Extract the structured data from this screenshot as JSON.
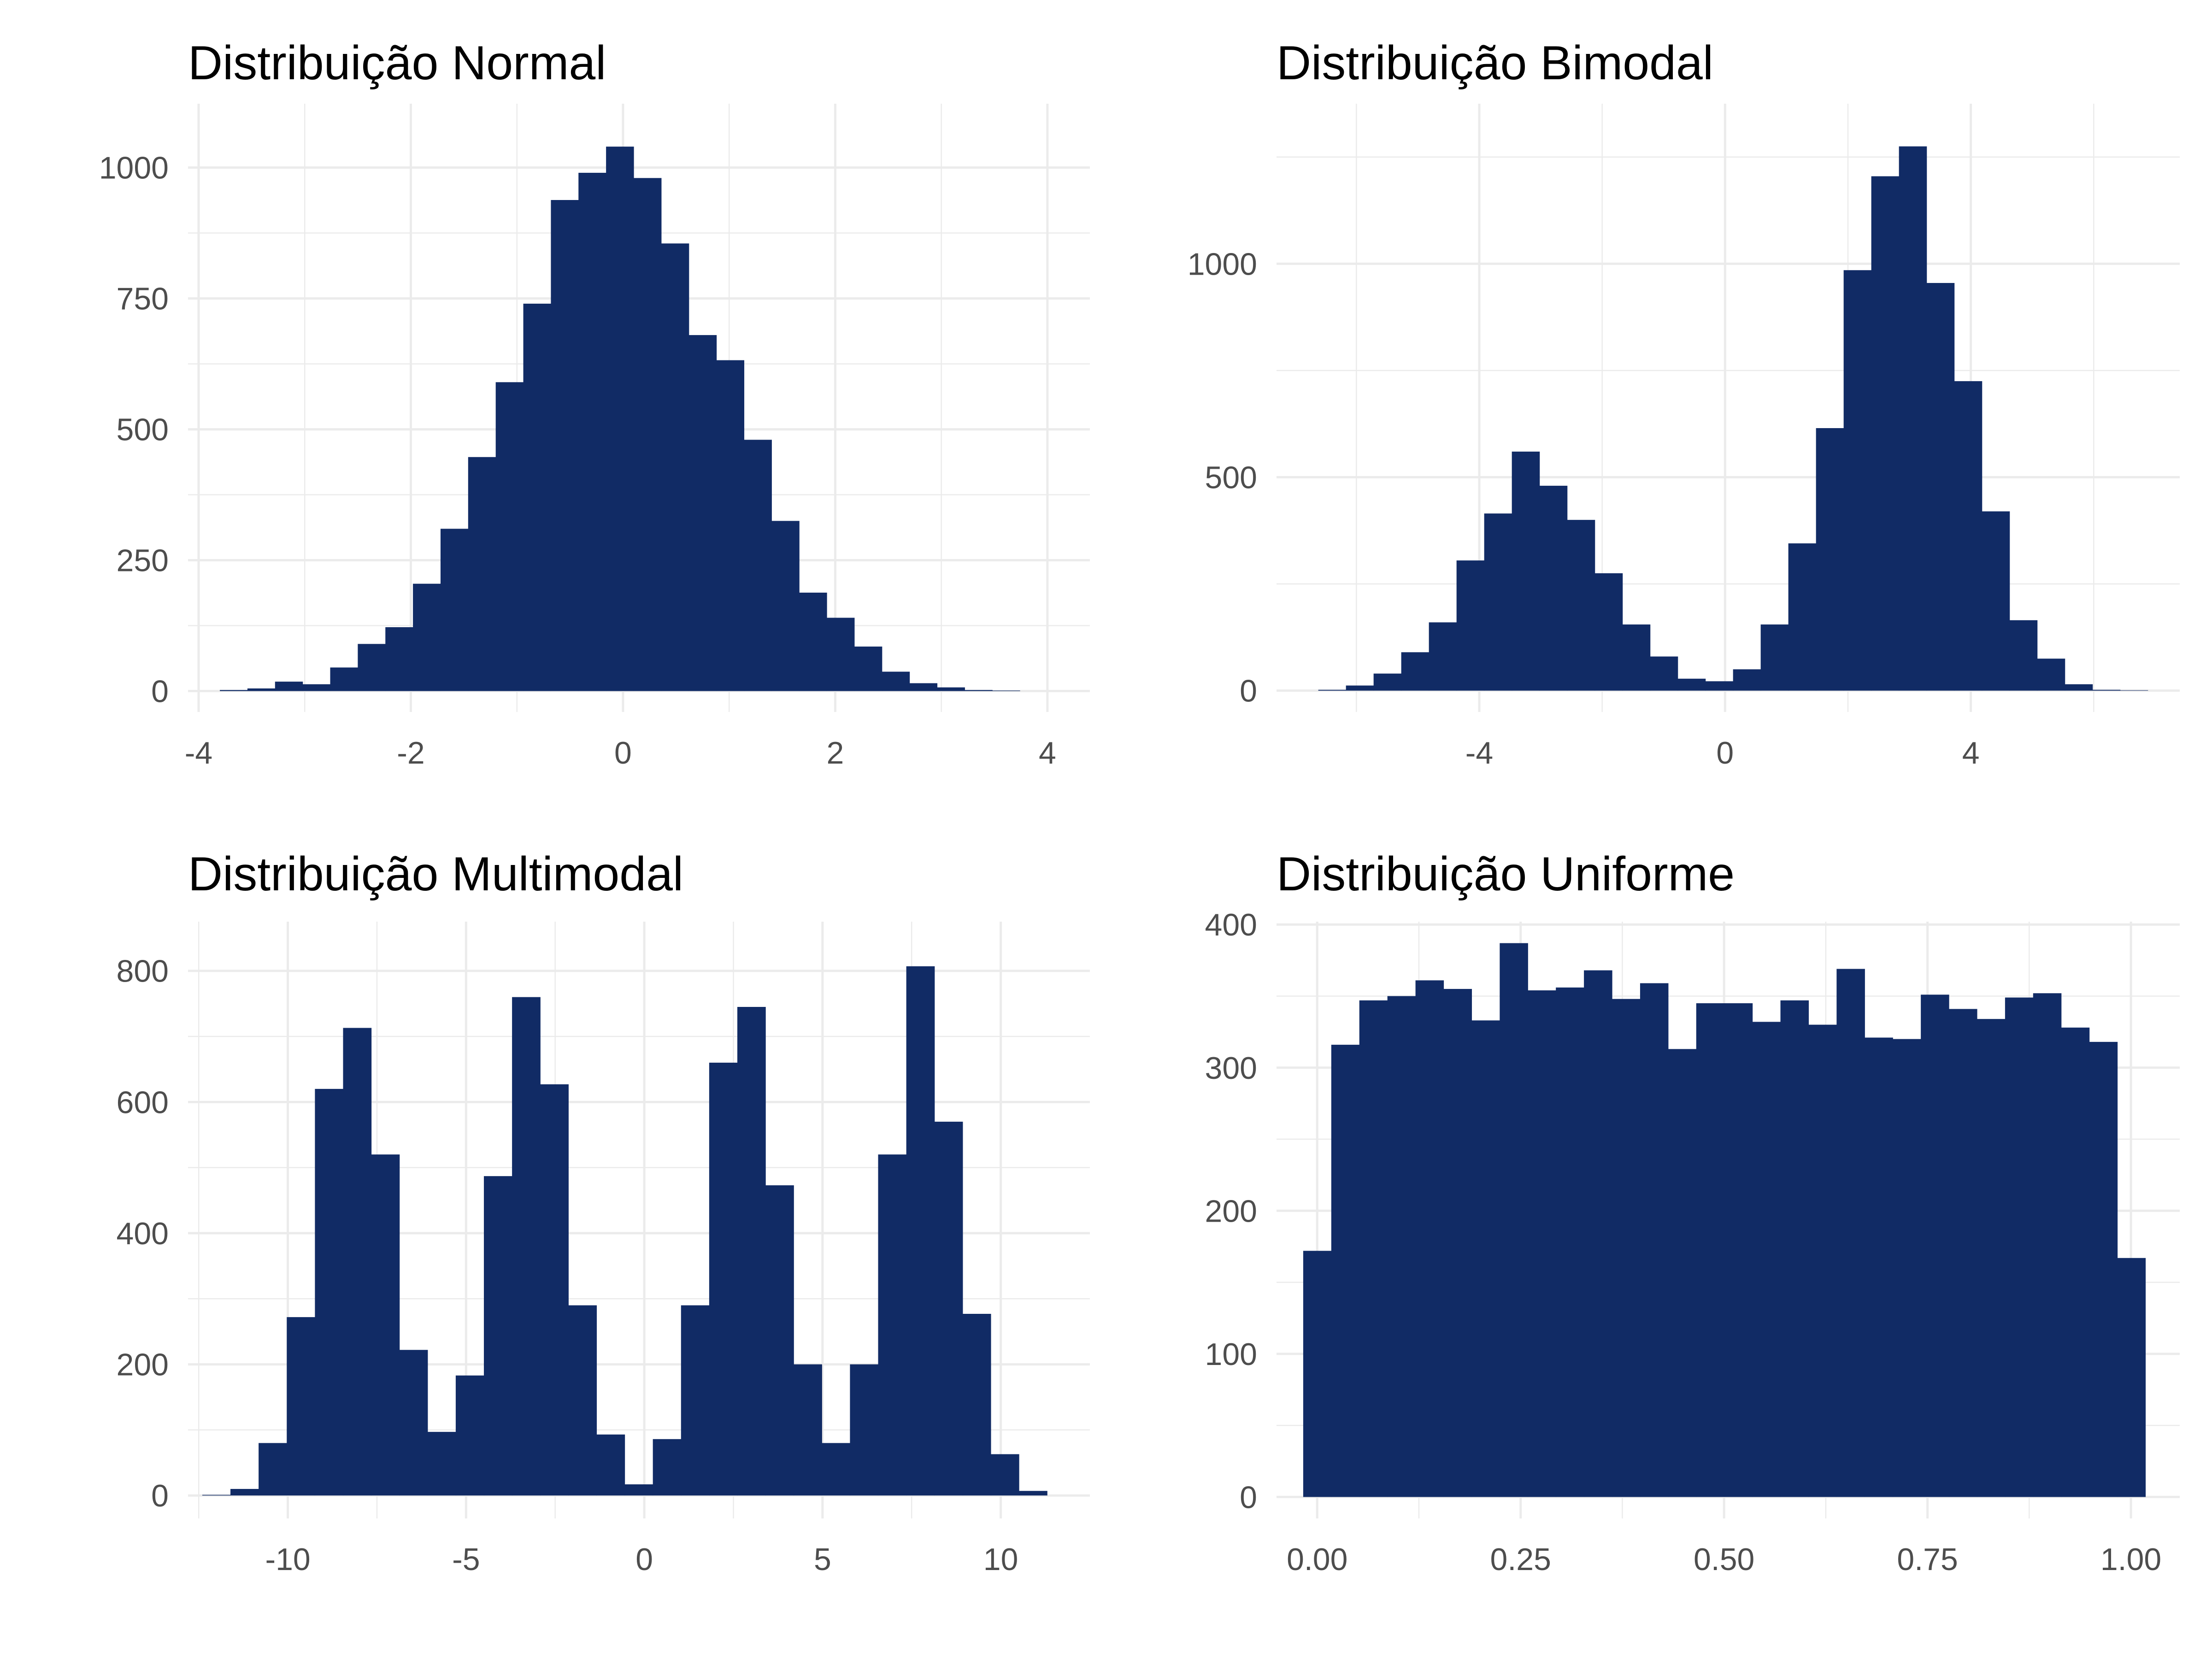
{
  "colors": {
    "bar": "#112b65",
    "grid": "#ebebeb",
    "tick_text": "#4d4d4d",
    "title_text": "#000000"
  },
  "chart_data": [
    {
      "type": "bar",
      "title": "Distribuição Normal",
      "bin_start": -3.8,
      "bin_width": 0.26,
      "counts": [
        2,
        5,
        18,
        13,
        45,
        90,
        122,
        205,
        310,
        447,
        590,
        740,
        938,
        990,
        1040,
        980,
        855,
        680,
        632,
        480,
        325,
        188,
        140,
        85,
        37,
        15,
        7,
        2,
        1,
        0,
        0
      ],
      "xlim": [
        -4.1,
        4.4
      ],
      "ylim": [
        -40,
        1122
      ],
      "x_ticks": [
        -4,
        -2,
        0,
        2,
        4
      ],
      "x_tick_labels": [
        "-4",
        "-2",
        "0",
        "2",
        "4"
      ],
      "y_ticks": [
        0,
        250,
        500,
        750,
        1000
      ],
      "y_tick_labels": [
        "0",
        "250",
        "500",
        "750",
        "1000"
      ],
      "grid": true
    },
    {
      "type": "bar",
      "title": "Distribuição Bimodal",
      "bin_start": -6.62,
      "bin_width": 0.45,
      "counts": [
        2,
        12,
        40,
        90,
        160,
        305,
        415,
        560,
        480,
        400,
        275,
        155,
        80,
        28,
        22,
        50,
        155,
        345,
        615,
        985,
        1205,
        1275,
        955,
        725,
        420,
        165,
        75,
        15,
        2,
        1
      ],
      "xlim": [
        -7.3,
        7.4
      ],
      "ylim": [
        -50,
        1375
      ],
      "x_ticks": [
        -4,
        0,
        4
      ],
      "x_tick_labels": [
        "-4",
        "0",
        "4"
      ],
      "y_ticks": [
        0,
        500,
        1000
      ],
      "y_tick_labels": [
        "0",
        "500",
        "1000"
      ],
      "grid": true
    },
    {
      "type": "bar",
      "title": "Distribuição Multimodal",
      "bin_start": -12.4,
      "bin_width": 0.79,
      "counts": [
        1,
        10,
        80,
        272,
        620,
        713,
        520,
        222,
        97,
        183,
        487,
        760,
        627,
        290,
        93,
        17,
        86,
        290,
        660,
        745,
        473,
        200,
        80,
        200,
        520,
        807,
        570,
        277,
        63,
        7
      ],
      "xlim": [
        -12.8,
        12.5
      ],
      "ylim": [
        -35,
        875
      ],
      "x_ticks": [
        -10,
        -5,
        0,
        5,
        10
      ],
      "x_tick_labels": [
        "-10",
        "-5",
        "0",
        "5",
        "10"
      ],
      "y_ticks": [
        0,
        200,
        400,
        600,
        800
      ],
      "y_tick_labels": [
        "0",
        "200",
        "400",
        "600",
        "800"
      ],
      "grid": true
    },
    {
      "type": "bar",
      "title": "Distribuição Uniforme",
      "bin_start": -0.0172,
      "bin_width": 0.0345,
      "counts": [
        172,
        316,
        347,
        350,
        361,
        355,
        333,
        387,
        354,
        356,
        368,
        348,
        359,
        313,
        345,
        345,
        332,
        347,
        330,
        369,
        321,
        320,
        351,
        341,
        334,
        349,
        352,
        328,
        318,
        167
      ],
      "xlim": [
        -0.05,
        1.06
      ],
      "ylim": [
        -15,
        402
      ],
      "x_ticks": [
        0,
        0.25,
        0.5,
        0.75,
        1.0
      ],
      "x_tick_labels": [
        "0.00",
        "0.25",
        "0.50",
        "0.75",
        "1.00"
      ],
      "y_ticks": [
        0,
        100,
        200,
        300,
        400
      ],
      "y_tick_labels": [
        "0",
        "100",
        "200",
        "300",
        "400"
      ],
      "grid": true
    }
  ]
}
